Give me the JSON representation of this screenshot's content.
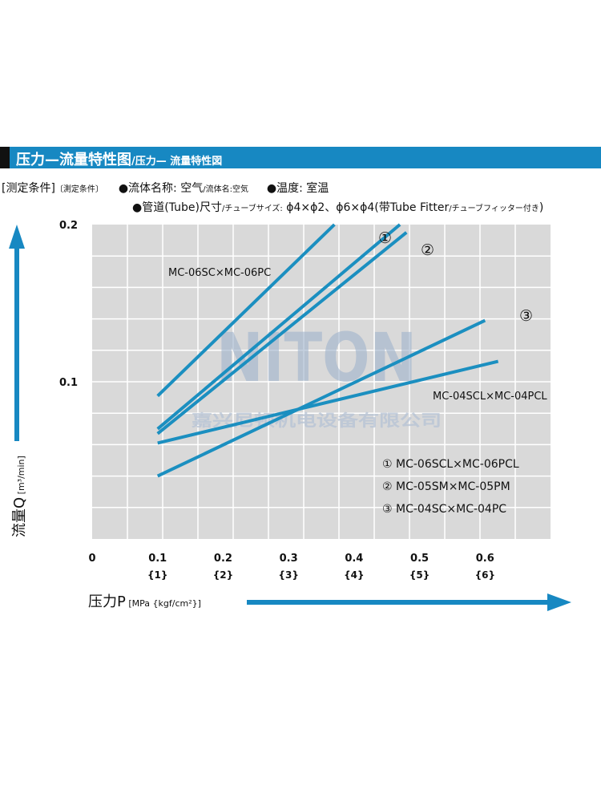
{
  "header": {
    "title": "压力—流量特性图",
    "subtitle": "/压力— 流量特性図"
  },
  "conditions": {
    "label": "[测定条件]",
    "label_jp": "〔測定条件〕",
    "fluid": "●流体名称: 空气",
    "fluid_jp": "/流体名:空気",
    "temperature": "●温度: 室温",
    "tube": "●管道(Tube)尺寸",
    "tube_jp": "/チューブサイズ:",
    "tube_sizes": " ϕ4×ϕ2、ϕ6×ϕ4(带Tube Fitter",
    "tube_note_jp": "/チューブフィッター付き",
    "tube_close": ")"
  },
  "axes": {
    "ylabel": "流量Q",
    "yunit": " [m³/min]",
    "xlabel": "压力P",
    "xunit": " [MPa {kgf/cm²}]"
  },
  "chart_data": {
    "type": "line",
    "xlabel": "压力P [MPa {kgf/cm²}]",
    "ylabel": "流量Q [m³/min]",
    "xlim": [
      0,
      0.7
    ],
    "ylim": [
      0.0,
      0.2
    ],
    "grid": true,
    "x_ticks": [
      {
        "value": 0,
        "label": "0",
        "sub": ""
      },
      {
        "value": 0.1,
        "label": "0.1",
        "sub": "{1}"
      },
      {
        "value": 0.2,
        "label": "0.2",
        "sub": "{2}"
      },
      {
        "value": 0.3,
        "label": "0.3",
        "sub": "{3}"
      },
      {
        "value": 0.4,
        "label": "0.4",
        "sub": "{4}"
      },
      {
        "value": 0.5,
        "label": "0.5",
        "sub": "{5}"
      },
      {
        "value": 0.6,
        "label": "0.6",
        "sub": "{6}"
      }
    ],
    "y_ticks": [
      {
        "value": 0.2,
        "label": "0.2"
      },
      {
        "value": 0.1,
        "label": "0.1"
      }
    ],
    "series": [
      {
        "name": "MC-06SC×MC-06PC",
        "x": [
          0.1,
          0.37
        ],
        "y": [
          0.091,
          0.2
        ]
      },
      {
        "name": "MC-06SCL×MC-06PCL",
        "x": [
          0.1,
          0.47
        ],
        "y": [
          0.07,
          0.2
        ]
      },
      {
        "name": "MC-05SM×MC-05PM",
        "x": [
          0.1,
          0.48
        ],
        "y": [
          0.067,
          0.195
        ]
      },
      {
        "name": "MC-04SC×MC-04PC",
        "x": [
          0.1,
          0.6
        ],
        "y": [
          0.04,
          0.139
        ]
      },
      {
        "name": "MC-04SCL×MC-04PCL",
        "x": [
          0.1,
          0.62
        ],
        "y": [
          0.061,
          0.113
        ]
      }
    ],
    "annotations": [
      {
        "text": "MC-06SC×MC-06PC"
      },
      {
        "text": "①"
      },
      {
        "text": "②"
      },
      {
        "text": "③"
      },
      {
        "text": "MC-04SCL×MC-04PCL"
      }
    ],
    "legend": [
      "① MC-06SCL×MC-06PCL",
      "② MC-05SM×MC-05PM",
      "③ MC-04SC×MC-04PC"
    ],
    "watermark": "NITON",
    "watermark_sub": "嘉兴尼顿机电设备有限公司"
  },
  "colors": {
    "line": "#1b8fc0",
    "plot_bg": "#d9d9d9",
    "grid": "#ffffff",
    "banner": "#1788c2"
  }
}
